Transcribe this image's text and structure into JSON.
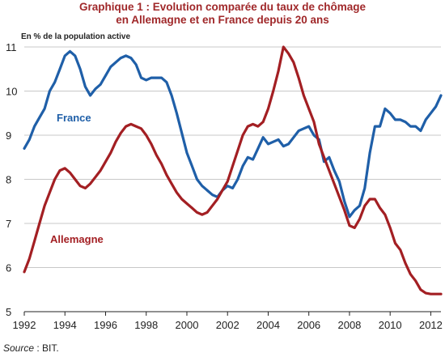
{
  "chart_data": {
    "type": "line",
    "title_line1": "Graphique 1 : Evolution comparée du taux de chômage",
    "title_line2": "en Allemagne et en France depuis 20 ans",
    "ylabel": "En % de la population active",
    "xlabel": "",
    "source_label": "Source",
    "source_text": " : BIT.",
    "xlim": [
      1992,
      2012.5
    ],
    "ylim": [
      5,
      11
    ],
    "xticks": [
      "1992",
      "1994",
      "1996",
      "1998",
      "2000",
      "2002",
      "2004",
      "2006",
      "2008",
      "2010",
      "2012"
    ],
    "yticks": [
      "5",
      "6",
      "7",
      "8",
      "9",
      "10",
      "11"
    ],
    "grid": "horizontal",
    "series": [
      {
        "name": "France",
        "color": "#1f5fa8",
        "x": [
          1992.0,
          1992.25,
          1992.5,
          1992.75,
          1993.0,
          1993.25,
          1993.5,
          1993.75,
          1994.0,
          1994.25,
          1994.5,
          1994.75,
          1995.0,
          1995.25,
          1995.5,
          1995.75,
          1996.0,
          1996.25,
          1996.5,
          1996.75,
          1997.0,
          1997.25,
          1997.5,
          1997.75,
          1998.0,
          1998.25,
          1998.5,
          1998.75,
          1999.0,
          1999.25,
          1999.5,
          1999.75,
          2000.0,
          2000.25,
          2000.5,
          2000.75,
          2001.0,
          2001.25,
          2001.5,
          2001.75,
          2002.0,
          2002.25,
          2002.5,
          2002.75,
          2003.0,
          2003.25,
          2003.5,
          2003.75,
          2004.0,
          2004.25,
          2004.5,
          2004.75,
          2005.0,
          2005.25,
          2005.5,
          2005.75,
          2006.0,
          2006.25,
          2006.5,
          2006.75,
          2007.0,
          2007.25,
          2007.5,
          2007.75,
          2008.0,
          2008.25,
          2008.5,
          2008.75,
          2009.0,
          2009.25,
          2009.5,
          2009.75,
          2010.0,
          2010.25,
          2010.5,
          2010.75,
          2011.0,
          2011.25,
          2011.5,
          2011.75,
          2012.0,
          2012.25,
          2012.5
        ],
        "values": [
          8.7,
          8.9,
          9.2,
          9.4,
          9.6,
          10.0,
          10.2,
          10.5,
          10.8,
          10.9,
          10.8,
          10.5,
          10.1,
          9.9,
          10.05,
          10.15,
          10.35,
          10.55,
          10.65,
          10.75,
          10.8,
          10.75,
          10.6,
          10.3,
          10.25,
          10.3,
          10.3,
          10.3,
          10.2,
          9.9,
          9.5,
          9.05,
          8.6,
          8.3,
          8.0,
          7.85,
          7.75,
          7.65,
          7.6,
          7.75,
          7.85,
          7.8,
          8.0,
          8.3,
          8.5,
          8.45,
          8.7,
          8.95,
          8.8,
          8.85,
          8.9,
          8.75,
          8.8,
          8.95,
          9.1,
          9.15,
          9.2,
          9.0,
          8.9,
          8.4,
          8.5,
          8.2,
          7.95,
          7.5,
          7.15,
          7.3,
          7.4,
          7.8,
          8.6,
          9.2,
          9.2,
          9.6,
          9.5,
          9.35,
          9.35,
          9.3,
          9.2,
          9.2,
          9.1,
          9.35,
          9.5,
          9.65,
          9.9
        ]
      },
      {
        "name": "Allemagne",
        "color": "#a31f23",
        "x": [
          1992.0,
          1992.25,
          1992.5,
          1992.75,
          1993.0,
          1993.25,
          1993.5,
          1993.75,
          1994.0,
          1994.25,
          1994.5,
          1994.75,
          1995.0,
          1995.25,
          1995.5,
          1995.75,
          1996.0,
          1996.25,
          1996.5,
          1996.75,
          1997.0,
          1997.25,
          1997.5,
          1997.75,
          1998.0,
          1998.25,
          1998.5,
          1998.75,
          1999.0,
          1999.25,
          1999.5,
          1999.75,
          2000.0,
          2000.25,
          2000.5,
          2000.75,
          2001.0,
          2001.25,
          2001.5,
          2001.75,
          2002.0,
          2002.25,
          2002.5,
          2002.75,
          2003.0,
          2003.25,
          2003.5,
          2003.75,
          2004.0,
          2004.25,
          2004.5,
          2004.75,
          2005.0,
          2005.25,
          2005.5,
          2005.75,
          2006.0,
          2006.25,
          2006.5,
          2006.75,
          2007.0,
          2007.25,
          2007.5,
          2007.75,
          2008.0,
          2008.25,
          2008.5,
          2008.75,
          2009.0,
          2009.25,
          2009.5,
          2009.75,
          2010.0,
          2010.25,
          2010.5,
          2010.75,
          2011.0,
          2011.25,
          2011.5,
          2011.75,
          2012.0,
          2012.25,
          2012.5
        ],
        "values": [
          5.9,
          6.2,
          6.6,
          7.0,
          7.4,
          7.7,
          8.0,
          8.2,
          8.25,
          8.15,
          8.0,
          7.85,
          7.8,
          7.9,
          8.05,
          8.2,
          8.4,
          8.6,
          8.85,
          9.05,
          9.2,
          9.25,
          9.2,
          9.15,
          9.0,
          8.8,
          8.55,
          8.35,
          8.1,
          7.9,
          7.7,
          7.55,
          7.45,
          7.35,
          7.25,
          7.2,
          7.25,
          7.4,
          7.55,
          7.75,
          7.95,
          8.3,
          8.65,
          9.0,
          9.2,
          9.25,
          9.2,
          9.3,
          9.6,
          10.0,
          10.45,
          11.0,
          10.85,
          10.65,
          10.3,
          9.9,
          9.6,
          9.3,
          8.8,
          8.5,
          8.2,
          7.9,
          7.6,
          7.3,
          6.95,
          6.9,
          7.1,
          7.4,
          7.55,
          7.55,
          7.35,
          7.2,
          6.9,
          6.55,
          6.4,
          6.1,
          5.85,
          5.7,
          5.5,
          5.42,
          5.4,
          5.4,
          5.4
        ]
      }
    ]
  }
}
